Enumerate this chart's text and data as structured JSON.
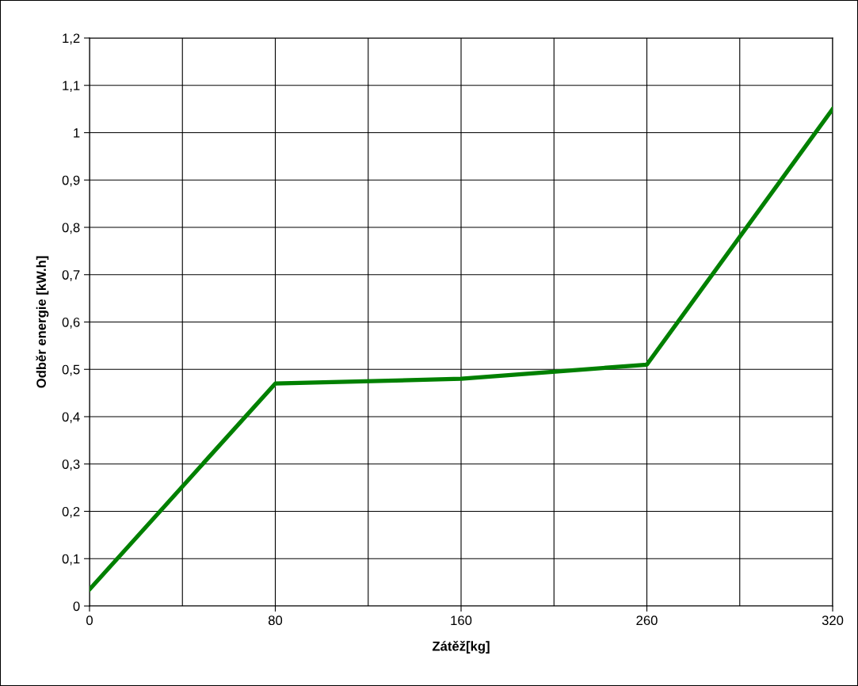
{
  "chart_data": {
    "type": "line",
    "xlabel": "Zátěž[kg]",
    "ylabel": "Odběr energie [kW.h]",
    "categories": [
      "0",
      "80",
      "160",
      "260",
      "320"
    ],
    "series": [
      {
        "color": "#008000",
        "values": [
          0.035,
          0.47,
          0.48,
          0.51,
          1.05
        ]
      }
    ],
    "ylim": [
      0,
      1.2
    ],
    "yticks": [
      0,
      {
        "value": 0.1,
        "label": "0,1"
      },
      {
        "value": 0.2,
        "label": "0,2"
      },
      {
        "value": 0.3,
        "label": "0,3"
      },
      {
        "value": 0.4,
        "label": "0,4"
      },
      {
        "value": 0.5,
        "label": "0,5"
      },
      {
        "value": 0.6,
        "label": "0,6"
      },
      {
        "value": 0.7,
        "label": "0,7"
      },
      {
        "value": 0.8,
        "label": "0,8"
      },
      {
        "value": 0.9,
        "label": "0,9"
      },
      1,
      {
        "value": 1.1,
        "label": "1,1"
      },
      {
        "value": 1.2,
        "label": "1,2"
      }
    ],
    "grid": true,
    "marker": "none",
    "line_style": "solid",
    "legend": false
  }
}
